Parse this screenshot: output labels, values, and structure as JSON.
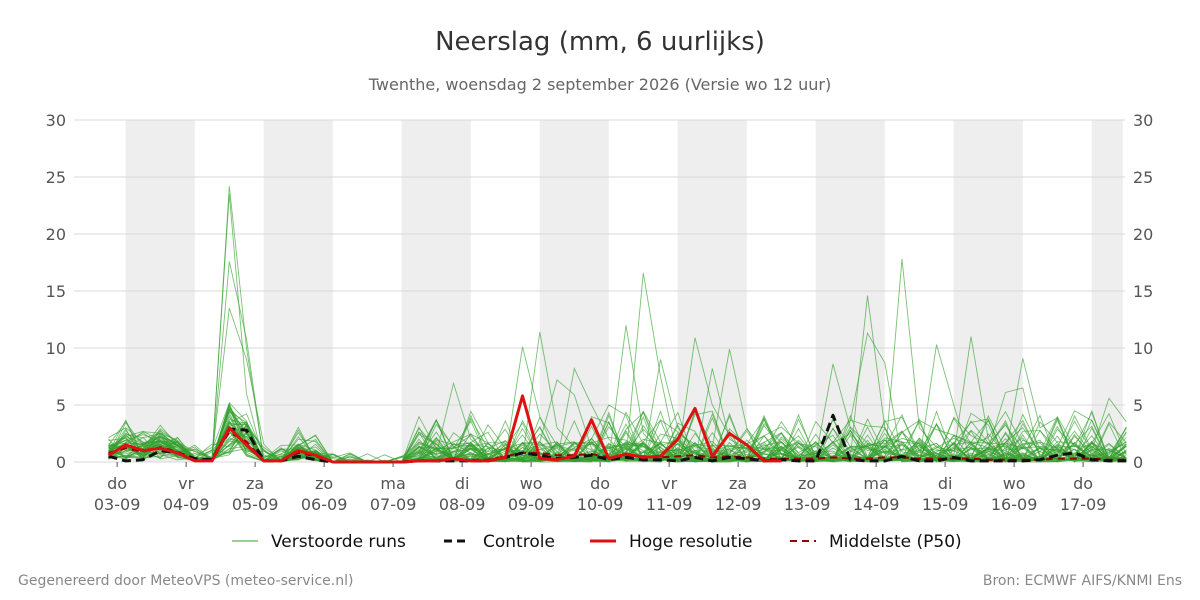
{
  "chart_data": {
    "type": "line",
    "title": "Neerslag (mm, 6 uurlijks)",
    "subtitle": "Twenthe, woensdag  2 september 2026 (Versie wo 12 uur)",
    "ylim": [
      0,
      30
    ],
    "yticks": [
      "0",
      "5",
      "10",
      "15",
      "20",
      "25",
      "30"
    ],
    "xrange": [
      0,
      58.8
    ],
    "x_step_hours": 6,
    "days": [
      {
        "x": 0.5,
        "day": "do",
        "date": "03-09"
      },
      {
        "x": 4.5,
        "day": "vr",
        "date": "04-09"
      },
      {
        "x": 8.5,
        "day": "za",
        "date": "05-09"
      },
      {
        "x": 12.5,
        "day": "zo",
        "date": "06-09"
      },
      {
        "x": 16.5,
        "day": "ma",
        "date": "07-09"
      },
      {
        "x": 20.5,
        "day": "di",
        "date": "08-09"
      },
      {
        "x": 24.5,
        "day": "wo",
        "date": "09-09"
      },
      {
        "x": 28.5,
        "day": "do",
        "date": "10-09"
      },
      {
        "x": 32.5,
        "day": "vr",
        "date": "11-09"
      },
      {
        "x": 36.5,
        "day": "za",
        "date": "12-09"
      },
      {
        "x": 40.5,
        "day": "zo",
        "date": "13-09"
      },
      {
        "x": 44.5,
        "day": "ma",
        "date": "14-09"
      },
      {
        "x": 48.5,
        "day": "di",
        "date": "15-09"
      },
      {
        "x": 52.5,
        "day": "wo",
        "date": "16-09"
      },
      {
        "x": 56.5,
        "day": "do",
        "date": "17-09"
      }
    ],
    "weekend_bands": [
      [
        1,
        5
      ],
      [
        9,
        13
      ],
      [
        17,
        21
      ],
      [
        25,
        29
      ],
      [
        33,
        37
      ],
      [
        41,
        45
      ],
      [
        49,
        53
      ],
      [
        57,
        58.8
      ]
    ],
    "series": [
      {
        "name": "Hoge resolutie",
        "color": "#dd1111",
        "values": [
          0.6,
          1.5,
          1.0,
          1.2,
          0.8,
          0.1,
          0.1,
          3.0,
          1.5,
          0.1,
          0.1,
          1.0,
          0.6,
          0.0,
          0.0,
          0.0,
          0.0,
          0.0,
          0.1,
          0.1,
          0.3,
          0.1,
          0.1,
          0.4,
          5.8,
          0.3,
          0.2,
          0.5,
          3.7,
          0.3,
          0.7,
          0.4,
          0.5,
          2.0,
          4.7,
          0.5,
          2.5,
          1.5,
          0.1,
          0.1
        ]
      },
      {
        "name": "Controle",
        "color": "#111111",
        "values": [
          0.5,
          0.1,
          0.2,
          1.0,
          0.8,
          0.3,
          0.2,
          2.9,
          2.8,
          0.1,
          0.1,
          0.5,
          0.2,
          0.0,
          0.0,
          0.0,
          0.0,
          0.0,
          0.1,
          0.1,
          0.1,
          0.1,
          0.1,
          0.4,
          0.8,
          0.6,
          0.3,
          0.4,
          0.6,
          0.2,
          0.4,
          0.2,
          0.2,
          0.1,
          0.4,
          0.1,
          0.4,
          0.3,
          0.1,
          0.2,
          0.1,
          0.1,
          4.1,
          0.2,
          0.1,
          0.1,
          0.5,
          0.1,
          0.1,
          0.4,
          0.1,
          0.1,
          0.1,
          0.1,
          0.2,
          0.6,
          0.8,
          0.2,
          0.1,
          0.1
        ]
      },
      {
        "name": "Middelste (P50)",
        "color": "#990000",
        "values": [
          0.8,
          1.2,
          0.9,
          1.3,
          0.9,
          0.2,
          0.2,
          2.6,
          1.8,
          0.1,
          0.1,
          0.8,
          0.5,
          0.0,
          0.0,
          0.0,
          0.0,
          0.0,
          0.1,
          0.1,
          0.2,
          0.2,
          0.2,
          0.5,
          0.8,
          0.8,
          0.6,
          0.6,
          0.7,
          0.4,
          0.5,
          0.5,
          0.4,
          0.5,
          0.6,
          0.4,
          0.5,
          0.4,
          0.3,
          0.3,
          0.3,
          0.3,
          0.4,
          0.3,
          0.3,
          0.4,
          0.4,
          0.3,
          0.3,
          0.3,
          0.3,
          0.2,
          0.2,
          0.2,
          0.2,
          0.3,
          0.3,
          0.3,
          0.2,
          0.2
        ]
      }
    ],
    "ensemble": {
      "name": "Verstoorde runs",
      "color": "#33a02c",
      "members": 50,
      "highlights": [
        [
          [
            7,
            24.2
          ],
          [
            8,
            10.0
          ]
        ],
        [
          [
            7,
            23.5
          ],
          [
            8,
            6.0
          ]
        ],
        [
          [
            7,
            17.6
          ],
          [
            8,
            10.8
          ]
        ],
        [
          [
            7,
            13.5
          ],
          [
            8,
            9.0
          ]
        ],
        [
          [
            20,
            6.9
          ],
          [
            21,
            2.0
          ]
        ],
        [
          [
            24,
            10.1
          ],
          [
            25,
            4.0
          ]
        ],
        [
          [
            25,
            11.4
          ],
          [
            26,
            3.0
          ]
        ],
        [
          [
            26,
            7.2
          ],
          [
            27,
            5.9
          ]
        ],
        [
          [
            27,
            8.2
          ],
          [
            28,
            5.0
          ]
        ],
        [
          [
            29,
            5.0
          ],
          [
            30,
            4.1
          ]
        ],
        [
          [
            30,
            12.0
          ],
          [
            31,
            2.5
          ]
        ],
        [
          [
            31,
            16.6
          ],
          [
            32,
            7.5
          ]
        ],
        [
          [
            32,
            9.0
          ],
          [
            33,
            3.0
          ]
        ],
        [
          [
            34,
            10.9
          ],
          [
            35,
            5.0
          ]
        ],
        [
          [
            35,
            8.2
          ],
          [
            36,
            2.0
          ]
        ],
        [
          [
            36,
            9.9
          ],
          [
            37,
            3.0
          ]
        ],
        [
          [
            42,
            8.6
          ],
          [
            43,
            3.0
          ]
        ],
        [
          [
            44,
            14.6
          ],
          [
            45,
            3.0
          ]
        ],
        [
          [
            44,
            11.3
          ],
          [
            45,
            8.7
          ]
        ],
        [
          [
            46,
            17.8
          ],
          [
            47,
            3.0
          ]
        ],
        [
          [
            48,
            10.3
          ],
          [
            49,
            5.0
          ]
        ],
        [
          [
            50,
            11.0
          ],
          [
            51,
            2.0
          ]
        ],
        [
          [
            52,
            6.1
          ],
          [
            53,
            6.5
          ]
        ],
        [
          [
            53,
            9.1
          ],
          [
            54,
            3.0
          ]
        ],
        [
          [
            58,
            5.6
          ],
          [
            57,
            1.0
          ]
        ]
      ]
    }
  },
  "legend": {
    "items": [
      {
        "label": "Verstoorde runs"
      },
      {
        "label": "Controle"
      },
      {
        "label": "Hoge resolutie"
      },
      {
        "label": "Middelste (P50)"
      }
    ]
  },
  "footer": {
    "left": "Gegenereerd door MeteoVPS (meteo-service.nl)",
    "right": "Bron: ECMWF AIFS/KNMI Ens"
  }
}
